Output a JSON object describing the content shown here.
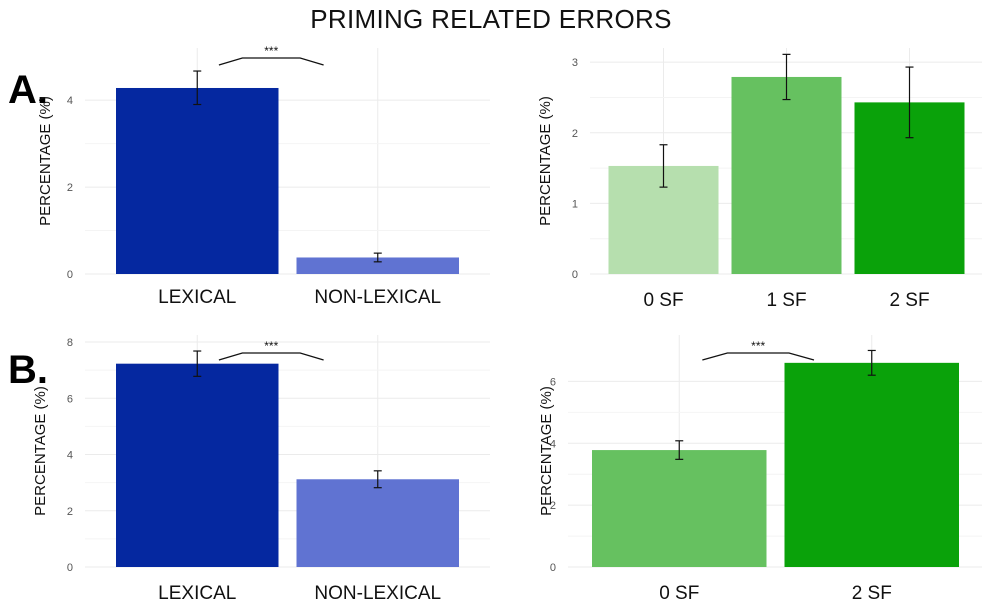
{
  "title": "PRIMING RELATED ERRORS",
  "panel_labels": [
    "A.",
    "B."
  ],
  "chart_data": [
    {
      "type": "bar",
      "panel": "A.",
      "ylabel": "PERCENTAGE (%)",
      "categories": [
        "LEXICAL",
        "NON-LEXICAL"
      ],
      "values": [
        4.28,
        0.38
      ],
      "error": [
        [
          3.9,
          4.67
        ],
        [
          0.28,
          0.48
        ]
      ],
      "colors": [
        "#0528a0",
        "#6073d2"
      ],
      "yticks": [
        "0",
        "2",
        "4"
      ],
      "ylim": [
        0,
        5.2
      ],
      "significance": {
        "label": "***",
        "between": [
          0,
          1
        ]
      }
    },
    {
      "type": "bar",
      "ylabel": "PERCENTAGE (%)",
      "categories": [
        "0 SF",
        "1 SF",
        "2 SF"
      ],
      "values": [
        1.53,
        2.79,
        2.43
      ],
      "error": [
        [
          1.23,
          1.83
        ],
        [
          2.47,
          3.11
        ],
        [
          1.93,
          2.93
        ]
      ],
      "colors": [
        "#b6dfae",
        "#66c160",
        "#0aa20a"
      ],
      "yticks": [
        "0",
        "1",
        "2",
        "3"
      ],
      "ylim": [
        0,
        3.2
      ]
    },
    {
      "type": "bar",
      "panel": "B.",
      "ylabel": "PERCENTAGE (%)",
      "categories": [
        "LEXICAL",
        "NON-LEXICAL"
      ],
      "values": [
        7.23,
        3.12
      ],
      "error": [
        [
          6.78,
          7.68
        ],
        [
          2.82,
          3.42
        ]
      ],
      "colors": [
        "#0528a0",
        "#6073d2"
      ],
      "yticks": [
        "0",
        "2",
        "4",
        "6",
        "8"
      ],
      "ylim": [
        0,
        8.25
      ],
      "significance": {
        "label": "***",
        "between": [
          0,
          1
        ]
      }
    },
    {
      "type": "bar",
      "ylabel": "PERCENTAGE (%)",
      "categories": [
        "0 SF",
        "2 SF"
      ],
      "values": [
        3.78,
        6.6
      ],
      "error": [
        [
          3.48,
          4.08
        ],
        [
          6.2,
          7.0
        ]
      ],
      "colors": [
        "#66c160",
        "#0aa20a"
      ],
      "yticks": [
        "0",
        "2",
        "4",
        "6"
      ],
      "ylim": [
        0,
        7.5
      ],
      "significance": {
        "label": "***",
        "between": [
          0,
          1
        ]
      }
    }
  ]
}
